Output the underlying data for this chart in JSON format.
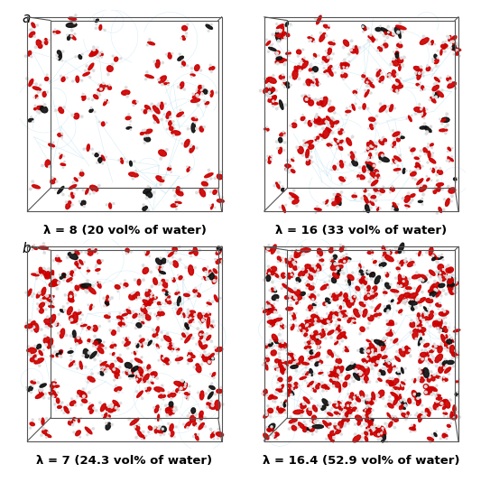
{
  "panels": [
    {
      "label": "a",
      "caption": "λ = 8 (20 vol% of water)",
      "n_molecules": 130,
      "seed": 42,
      "row": 0,
      "col": 0,
      "perspective_shift": 0.13
    },
    {
      "label": "",
      "caption": "λ = 16 (33 vol% of water)",
      "n_molecules": 260,
      "seed": 7,
      "row": 0,
      "col": 1,
      "perspective_shift": 0.13
    },
    {
      "label": "b",
      "caption": "λ = 7 (24.3 vol% of water)",
      "n_molecules": 310,
      "seed": 99,
      "row": 1,
      "col": 0,
      "perspective_shift": 0.13
    },
    {
      "label": "",
      "caption": "λ = 16.4 (52.9 vol% of water)",
      "n_molecules": 520,
      "seed": 13,
      "row": 1,
      "col": 1,
      "perspective_shift": 0.13
    }
  ],
  "bg_color": "#ffffff",
  "box_color": "#555555",
  "molecule_red": "#cc0000",
  "molecule_dark": "#111111",
  "network_color": "#b8e0f0",
  "caption_fontsize": 9.5,
  "label_fontsize": 11
}
